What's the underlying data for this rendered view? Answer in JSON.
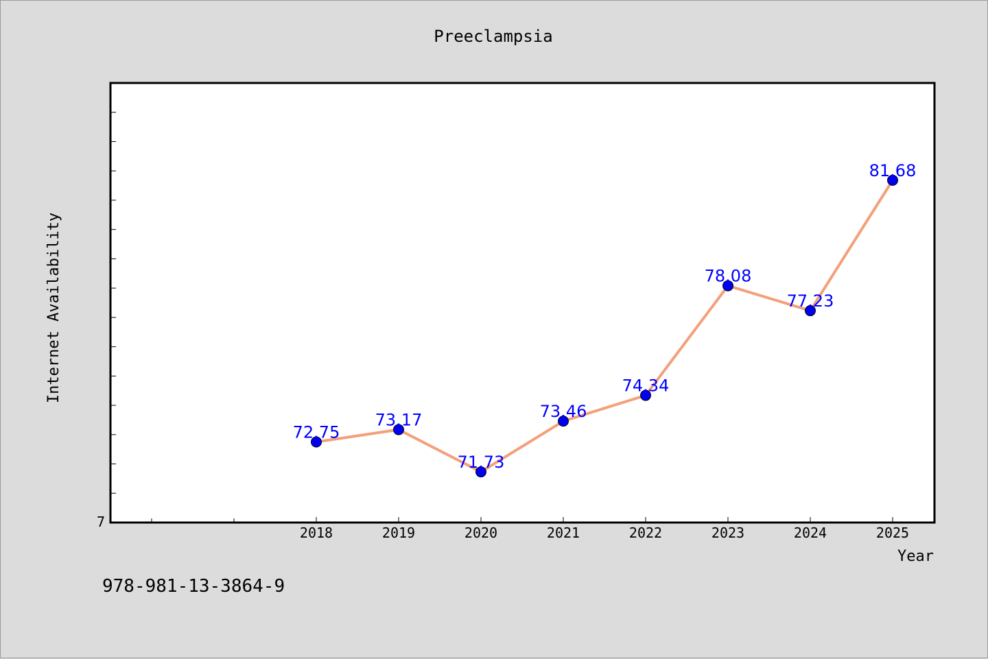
{
  "chart_data": {
    "type": "line",
    "title": "Preeclampsia",
    "xlabel": "Year",
    "ylabel": "Internet Availability",
    "x": [
      "2018",
      "2019",
      "2020",
      "2021",
      "2022",
      "2023",
      "2024",
      "2025"
    ],
    "values": [
      72.75,
      73.17,
      71.73,
      73.46,
      74.34,
      78.08,
      77.23,
      81.68
    ],
    "data_labels": [
      "72.75",
      "73.17",
      "71.73",
      "73.46",
      "74.34",
      "78.08",
      "77.23",
      "81.68"
    ],
    "y_tick_labels": [
      "7"
    ],
    "ylim": [
      70,
      85
    ],
    "grid": false,
    "line_color": "#f4a07a",
    "marker_color": "#0000ee",
    "label_color": "#0000ff"
  },
  "footer": {
    "isbn": "978-981-13-3864-9"
  }
}
